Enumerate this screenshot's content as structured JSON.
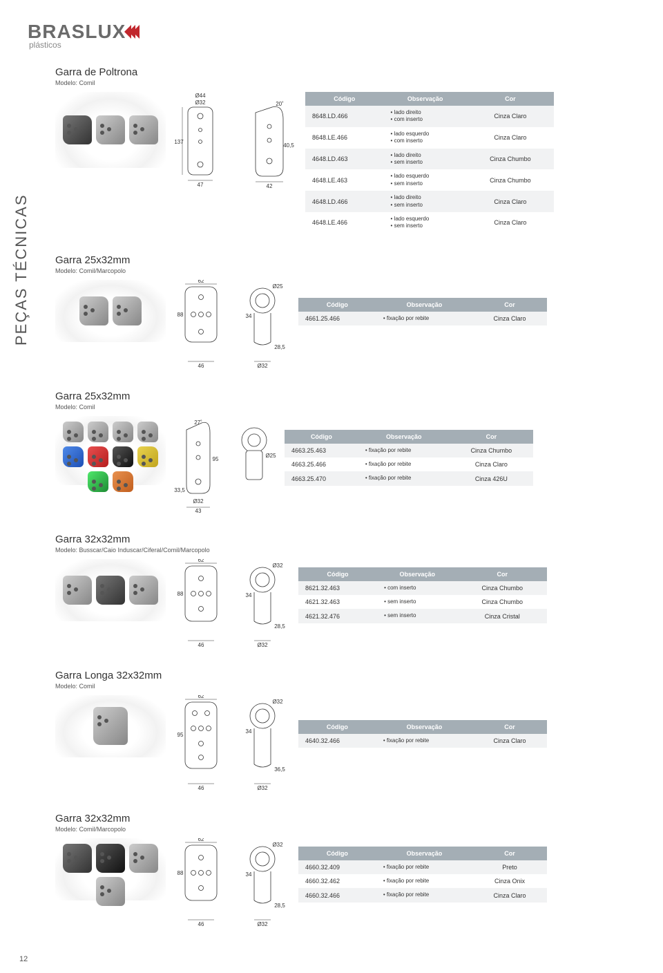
{
  "page_number": "12",
  "brand": {
    "name": "BRASLUX",
    "sub": "plásticos"
  },
  "side_label": "PEÇAS TÉCNICAS",
  "table_headers": {
    "codigo": "Código",
    "obs": "Observação",
    "cor": "Cor"
  },
  "sections": [
    {
      "title": "Garra de Poltrona",
      "model": "Modelo: Comil",
      "dims": {
        "d1": "Ø44",
        "d2": "Ø32",
        "h": "137",
        "w1": "47",
        "w2": "42",
        "gap": "40,5",
        "ang": "20˚"
      },
      "rows": [
        {
          "code": "8648.LD.466",
          "obs": "• lado direito\n• com inserto",
          "cor": "Cinza Claro"
        },
        {
          "code": "8648.LE.466",
          "obs": "• lado esquerdo\n• com inserto",
          "cor": "Cinza Claro"
        },
        {
          "code": "4648.LD.463",
          "obs": "• lado direito\n• sem inserto",
          "cor": "Cinza Chumbo"
        },
        {
          "code": "4648.LE.463",
          "obs": "• lado esquerdo\n• sem inserto",
          "cor": "Cinza Chumbo"
        },
        {
          "code": "4648.LD.466",
          "obs": "• lado direito\n• sem inserto",
          "cor": "Cinza Claro"
        },
        {
          "code": "4648.LE.466",
          "obs": "• lado esquerdo\n• sem inserto",
          "cor": "Cinza Claro"
        }
      ]
    },
    {
      "title": "Garra 25x32mm",
      "model": "Modelo: Comil/Marcopolo",
      "dims": {
        "w": "62",
        "h": "88",
        "hh": "34",
        "b": "46",
        "bh": "28,5",
        "d1": "Ø25",
        "d2": "Ø32"
      },
      "rows": [
        {
          "code": "4661.25.466",
          "obs": "• fixação por rebite",
          "cor": "Cinza Claro"
        }
      ]
    },
    {
      "title": "Garra 25x32mm",
      "model": "Modelo: Comil",
      "dims": {
        "h": "95",
        "base": "33,5",
        "w": "43",
        "d": "Ø32",
        "ang": "27˚",
        "d2": "Ø25"
      },
      "rows": [
        {
          "code": "4663.25.463",
          "obs": "• fixação por rebite",
          "cor": "Cinza Chumbo"
        },
        {
          "code": "4663.25.466",
          "obs": "• fixação por rebite",
          "cor": "Cinza Claro"
        },
        {
          "code": "4663.25.470",
          "obs": "• fixação por rebite",
          "cor": "Cinza 426U"
        }
      ]
    },
    {
      "title": "Garra 32x32mm",
      "model": "Modelo: Busscar/Caio Induscar/Ciferal/Comil/Marcopolo",
      "dims": {
        "w": "62",
        "h": "88",
        "hh": "34",
        "b": "46",
        "bh": "28,5",
        "d1": "Ø32",
        "d2": "Ø32"
      },
      "rows": [
        {
          "code": "8621.32.463",
          "obs": "• com inserto",
          "cor": "Cinza Chumbo"
        },
        {
          "code": "4621.32.463",
          "obs": "• sem inserto",
          "cor": "Cinza Chumbo"
        },
        {
          "code": "4621.32.476",
          "obs": "• sem inserto",
          "cor": "Cinza Cristal"
        }
      ]
    },
    {
      "title": "Garra Longa 32x32mm",
      "model": "Modelo: Comil",
      "dims": {
        "w": "62",
        "h": "95",
        "hh": "34",
        "b": "46",
        "bh": "36,5",
        "d1": "Ø32",
        "d2": "Ø32"
      },
      "rows": [
        {
          "code": "4640.32.466",
          "obs": "• fixação por rebite",
          "cor": "Cinza Claro"
        }
      ]
    },
    {
      "title": "Garra 32x32mm",
      "model": "Modelo: Comil/Marcopolo",
      "dims": {
        "w": "62",
        "h": "88",
        "hh": "34",
        "b": "46",
        "bh": "28,5",
        "d1": "Ø32",
        "d2": "Ø32"
      },
      "rows": [
        {
          "code": "4660.32.409",
          "obs": "• fixação por rebite",
          "cor": "Preto"
        },
        {
          "code": "4660.32.462",
          "obs": "• fixação por rebite",
          "cor": "Cinza Onix"
        },
        {
          "code": "4660.32.466",
          "obs": "• fixação por rebite",
          "cor": "Cinza Claro"
        }
      ]
    }
  ]
}
